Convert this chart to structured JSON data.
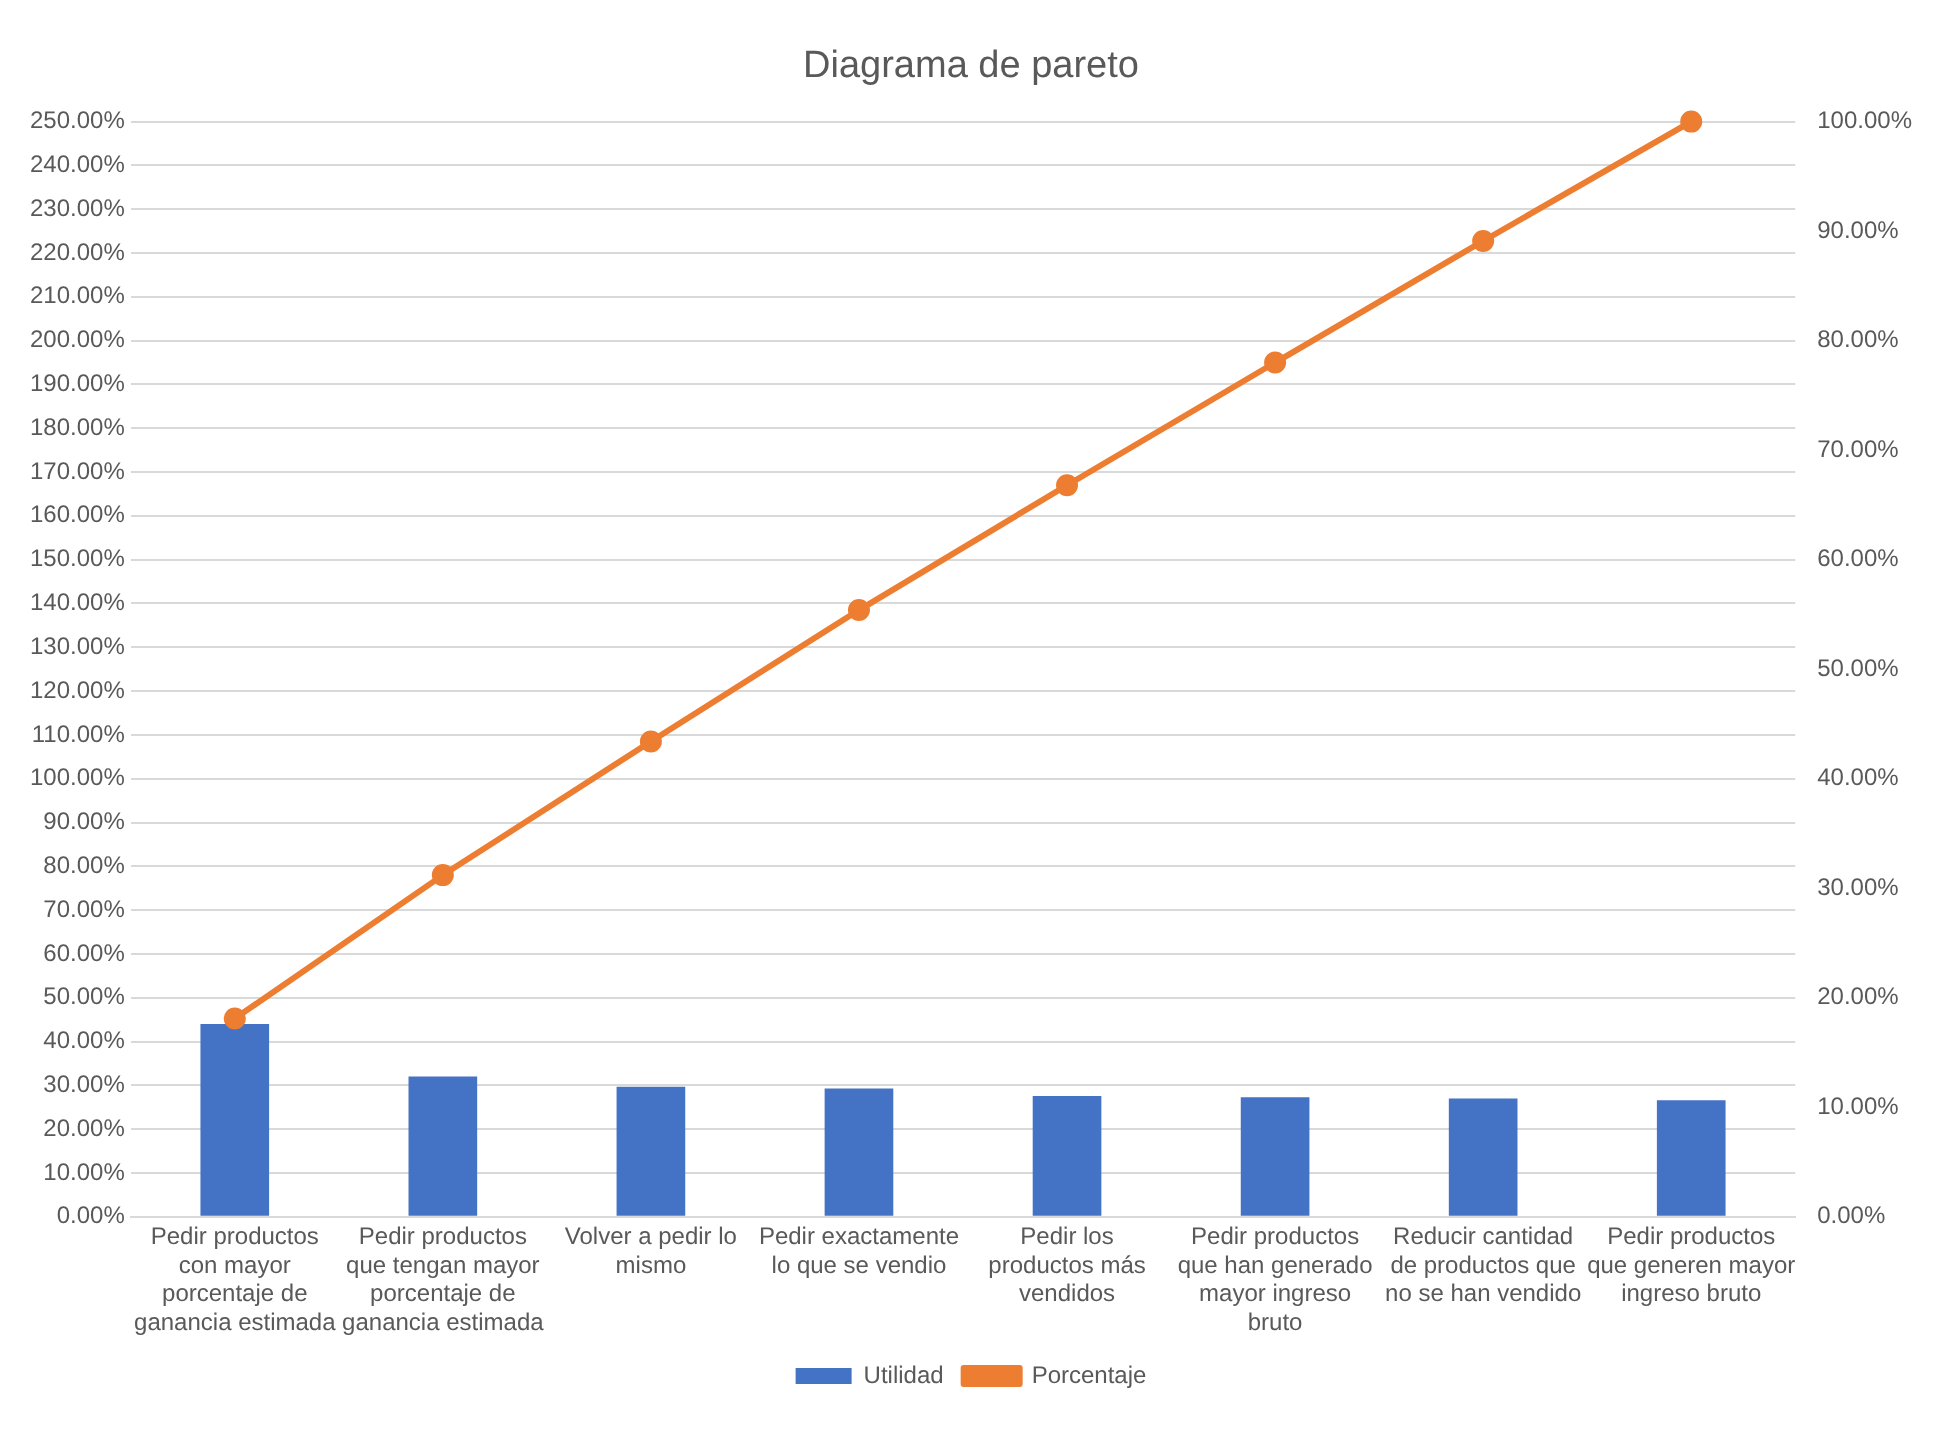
{
  "chart_data": {
    "type": "bar",
    "title": "Diagrama de pareto",
    "categories": [
      "Pedir productos con mayor porcentaje de ganancia estimada",
      "Pedir productos que tengan mayor porcentaje de ganancia estimada",
      "Volver a pedir lo mismo",
      "Pedir exactamente lo que se vendio",
      "Pedir los productos más vendidos",
      "Pedir productos que han generado mayor ingreso bruto",
      "Reducir cantidad de productos que no se han vendido",
      "Pedir productos que generen mayor ingreso bruto"
    ],
    "series": [
      {
        "name": "Utilidad",
        "color": "#4472c4",
        "values": [
          44,
          32,
          29.7,
          29.3,
          27.6,
          27.3,
          27,
          26.6
        ]
      },
      {
        "name": "Porcentaje",
        "type": "line",
        "axis": "y2",
        "color": "#ed7d31",
        "values": [
          18.1,
          31.2,
          43.4,
          55.4,
          66.8,
          78,
          89.1,
          100
        ]
      }
    ],
    "ylim": [
      0,
      250
    ],
    "yticks": [
      {
        "value": 0,
        "label": "0.00%"
      },
      {
        "value": 10,
        "label": "10.00%"
      },
      {
        "value": 20,
        "label": "20.00%"
      },
      {
        "value": 30,
        "label": "30.00%"
      },
      {
        "value": 40,
        "label": "40.00%"
      },
      {
        "value": 50,
        "label": "50.00%"
      },
      {
        "value": 60,
        "label": "60.00%"
      },
      {
        "value": 70,
        "label": "70.00%"
      },
      {
        "value": 80,
        "label": "80.00%"
      },
      {
        "value": 90,
        "label": "90.00%"
      },
      {
        "value": 100,
        "label": "100.00%"
      },
      {
        "value": 110,
        "label": "110.00%"
      },
      {
        "value": 120,
        "label": "120.00%"
      },
      {
        "value": 130,
        "label": "130.00%"
      },
      {
        "value": 140,
        "label": "140.00%"
      },
      {
        "value": 150,
        "label": "150.00%"
      },
      {
        "value": 160,
        "label": "160.00%"
      },
      {
        "value": 170,
        "label": "170.00%"
      },
      {
        "value": 180,
        "label": "180.00%"
      },
      {
        "value": 190,
        "label": "190.00%"
      },
      {
        "value": 200,
        "label": "200.00%"
      },
      {
        "value": 210,
        "label": "210.00%"
      },
      {
        "value": 220,
        "label": "220.00%"
      },
      {
        "value": 230,
        "label": "230.00%"
      },
      {
        "value": 240,
        "label": "240.00%"
      },
      {
        "value": 250,
        "label": "250.00%"
      }
    ],
    "y2lim": [
      0,
      100
    ],
    "y2ticks": [
      {
        "value": 0,
        "label": "0.00%"
      },
      {
        "value": 10,
        "label": "10.00%"
      },
      {
        "value": 20,
        "label": "20.00%"
      },
      {
        "value": 30,
        "label": "30.00%"
      },
      {
        "value": 40,
        "label": "40.00%"
      },
      {
        "value": 50,
        "label": "50.00%"
      },
      {
        "value": 60,
        "label": "60.00%"
      },
      {
        "value": 70,
        "label": "70.00%"
      },
      {
        "value": 80,
        "label": "80.00%"
      },
      {
        "value": 90,
        "label": "90.00%"
      },
      {
        "value": 100,
        "label": "100.00%"
      }
    ],
    "grid": "y",
    "legend": "bottom",
    "marker": "circle",
    "line_style": "solid"
  }
}
